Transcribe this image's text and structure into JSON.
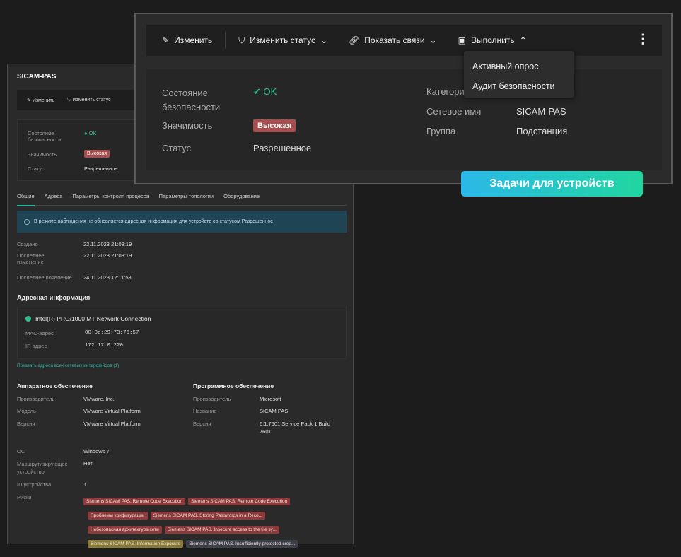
{
  "back_panel": {
    "title": "SICAM-PAS",
    "toolbar": {
      "edit": "Изменить",
      "change_status": "Изменить статус"
    },
    "info": {
      "security_label": "Состояние безопасности",
      "security_value": "OK",
      "importance_label": "Значимость",
      "importance_value": "Высокая",
      "status_label": "Статус",
      "status_value": "Разрешенное"
    },
    "tabs": [
      "Общие",
      "Адреса",
      "Параметры контроля процесса",
      "Параметры топологии",
      "Оборудование"
    ],
    "banner": "В режиме наблюдения не обновляется адресная информация для устройств со статусом Разрешенное",
    "dates": [
      {
        "label": "Создано",
        "value": "22.11.2023 21:03:19"
      },
      {
        "label": "Последнее изменение",
        "value": "22.11.2023 21:03:19"
      },
      {
        "label": "Последнее появление",
        "value": "24.11.2023 12:11:53"
      }
    ],
    "address_heading": "Адресная информация",
    "network": {
      "name": "Intel(R) PRO/1000 MT Network Connection",
      "mac_label": "MAC-адрес",
      "mac": "00:0c:29:73:76:57",
      "ip_label": "IP-адрес",
      "ip": "172.17.0.220"
    },
    "show_all_link": "Показать адреса всех сетевых интерфейсов (1)",
    "hardware": {
      "heading": "Аппаратное обеспечение",
      "rows": [
        {
          "label": "Производитель",
          "value": "VMware, Inc."
        },
        {
          "label": "Модель",
          "value": "VMware Virtual Platform"
        },
        {
          "label": "Версия",
          "value": "VMware Virtual Platform"
        }
      ]
    },
    "software": {
      "heading": "Программное обеспечение",
      "rows": [
        {
          "label": "Производитель",
          "value": "Microsoft"
        },
        {
          "label": "Название",
          "value": "SICAM PAS"
        },
        {
          "label": "Версия",
          "value": "6.1.7601 Service Pack 1 Build 7601"
        }
      ]
    },
    "os": {
      "label": "ОС",
      "value": "Windows 7"
    },
    "routing": {
      "label": "Маршрутизирующее устройство",
      "value": "Нет"
    },
    "device_id": {
      "label": "ID устройства",
      "value": "1"
    },
    "risks_label": "Риски",
    "risks": [
      {
        "text": "Siemens SICAM PAS. Remote Code Execution",
        "color": "red"
      },
      {
        "text": "Siemens SICAM PAS. Remote Code Execution",
        "color": "red"
      },
      {
        "text": "Проблемы конфигурации",
        "color": "red"
      },
      {
        "text": "Siemens SICAM PAS. Storing Passwords in a Reco...",
        "color": "red"
      },
      {
        "text": "Небезопасная архитектура сети",
        "color": "red"
      },
      {
        "text": "Siemens SICAM PAS. Insecure access to the file sy...",
        "color": "red"
      },
      {
        "text": "Siemens SICAM PAS. Information Exposure",
        "color": "yellow"
      },
      {
        "text": "Siemens SICAM PAS. Insufficiently protected cred...",
        "color": "gray"
      }
    ]
  },
  "front_panel": {
    "toolbar": {
      "edit": "Изменить",
      "change_status": "Изменить статус",
      "show_links": "Показать связи",
      "execute": "Выполнить"
    },
    "dropdown": [
      "Активный опрос",
      "Аудит безопасности"
    ],
    "info": {
      "security_label": "Состояние безопасности",
      "security_value": "OK",
      "importance_label": "Значимость",
      "importance_value": "Высокая",
      "status_label": "Статус",
      "status_value": "Разрешенное",
      "category_label": "Категория",
      "netname_label": "Сетевое имя",
      "netname_value": "SICAM-PAS",
      "group_label": "Группа",
      "group_value": "Подстанция"
    }
  },
  "callout": "Задачи для устройств",
  "colors": {
    "ok": "#2bc08a",
    "danger": "#a84e4e",
    "accent_gradient_start": "#2ab8e8",
    "accent_gradient_end": "#21d6a0"
  }
}
